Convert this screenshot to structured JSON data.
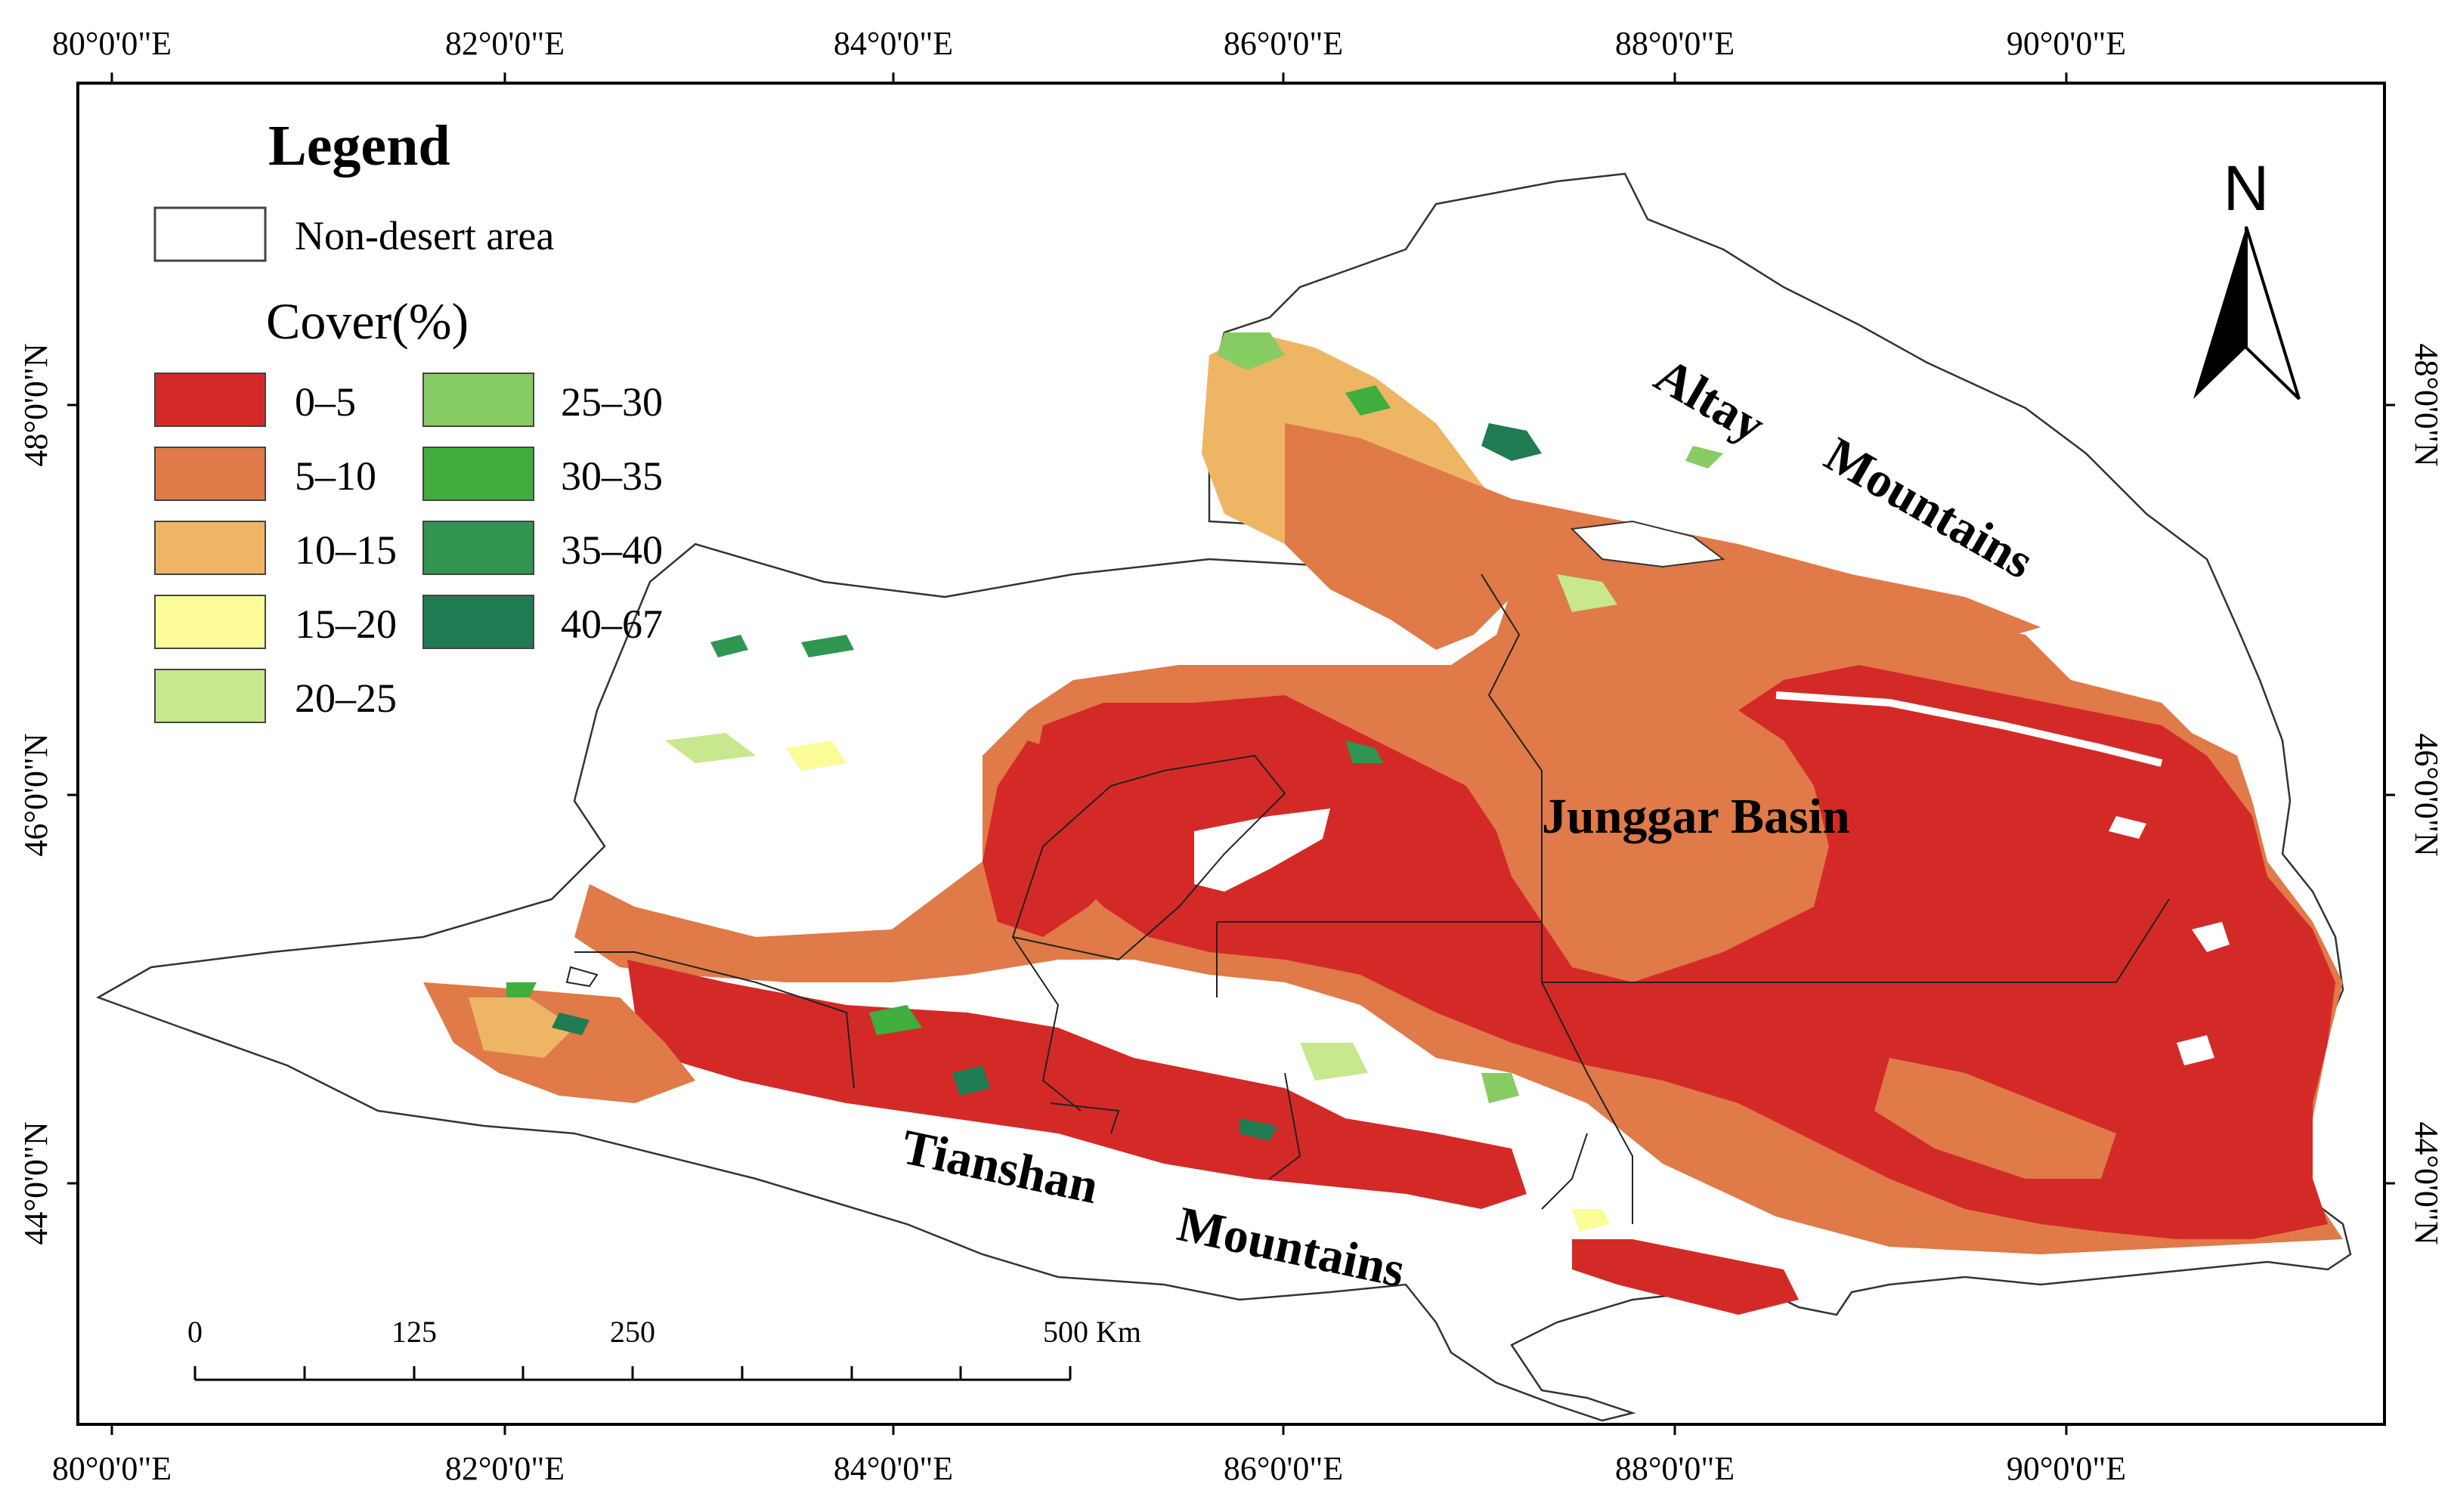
{
  "graticule": {
    "lon_labels": [
      "80°0'0\"E",
      "82°0'0\"E",
      "84°0'0\"E",
      "86°0'0\"E",
      "88°0'0\"E",
      "90°0'0\"E"
    ],
    "lat_labels": [
      "48°0'0\"N",
      "46°0'0\"N",
      "44°0'0\"N"
    ]
  },
  "legend": {
    "title": "Legend",
    "non_desert_label": "Non-desert area",
    "cover_title": "Cover(%)",
    "classes": [
      {
        "label": "0–5",
        "color": "#d42a27"
      },
      {
        "label": "5–10",
        "color": "#e07a48"
      },
      {
        "label": "10–15",
        "color": "#eeb565"
      },
      {
        "label": "15–20",
        "color": "#fbfb98"
      },
      {
        "label": "20–25",
        "color": "#c7e88c"
      },
      {
        "label": "25–30",
        "color": "#86cc62"
      },
      {
        "label": "30–35",
        "color": "#3fae3d"
      },
      {
        "label": "35–40",
        "color": "#2f9550"
      },
      {
        "label": "40–67",
        "color": "#1e7b52"
      }
    ]
  },
  "places": {
    "altay": "Altay",
    "mountains_1": "Mountains",
    "junggar": "Junggar Basin",
    "tianshan": "Tianshan",
    "mountains_2": "Mountains"
  },
  "north_arrow": {
    "label": "N"
  },
  "scale_bar": {
    "labels": [
      "0",
      "125",
      "250",
      "500 Km"
    ]
  }
}
